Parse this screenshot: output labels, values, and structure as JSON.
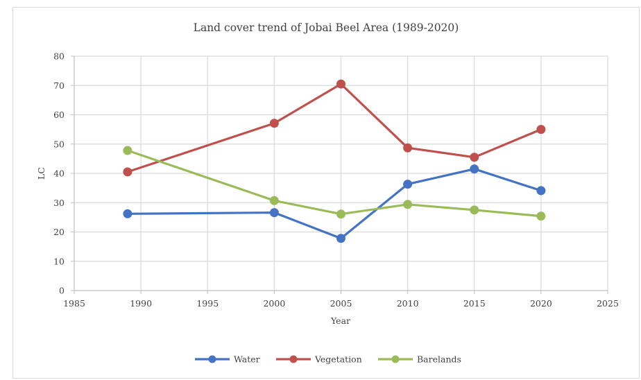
{
  "chart_data": {
    "type": "line",
    "title": "Land cover trend of Jobai Beel Area (1989-2020)",
    "xlabel": "Year",
    "ylabel": "LC",
    "xlim": [
      1985,
      2025
    ],
    "ylim": [
      0,
      80
    ],
    "xticks": [
      1985,
      1990,
      1995,
      2000,
      2005,
      2010,
      2015,
      2020,
      2025
    ],
    "yticks": [
      0,
      10,
      20,
      30,
      40,
      50,
      60,
      70,
      80
    ],
    "grid": true,
    "legend": "bottom",
    "x": [
      1989,
      2000,
      2005,
      2010,
      2015,
      2020
    ],
    "series": [
      {
        "name": "Water",
        "color": "#4472c4",
        "values": [
          26.2,
          26.6,
          17.8,
          36.3,
          41.5,
          34.1
        ]
      },
      {
        "name": "Vegetation",
        "color": "#c0504d",
        "values": [
          40.5,
          57.1,
          70.5,
          48.7,
          45.5,
          55.0
        ]
      },
      {
        "name": "Barelands",
        "color": "#9bbb59",
        "values": [
          47.8,
          30.7,
          26.1,
          29.4,
          27.5,
          25.4
        ]
      }
    ]
  }
}
